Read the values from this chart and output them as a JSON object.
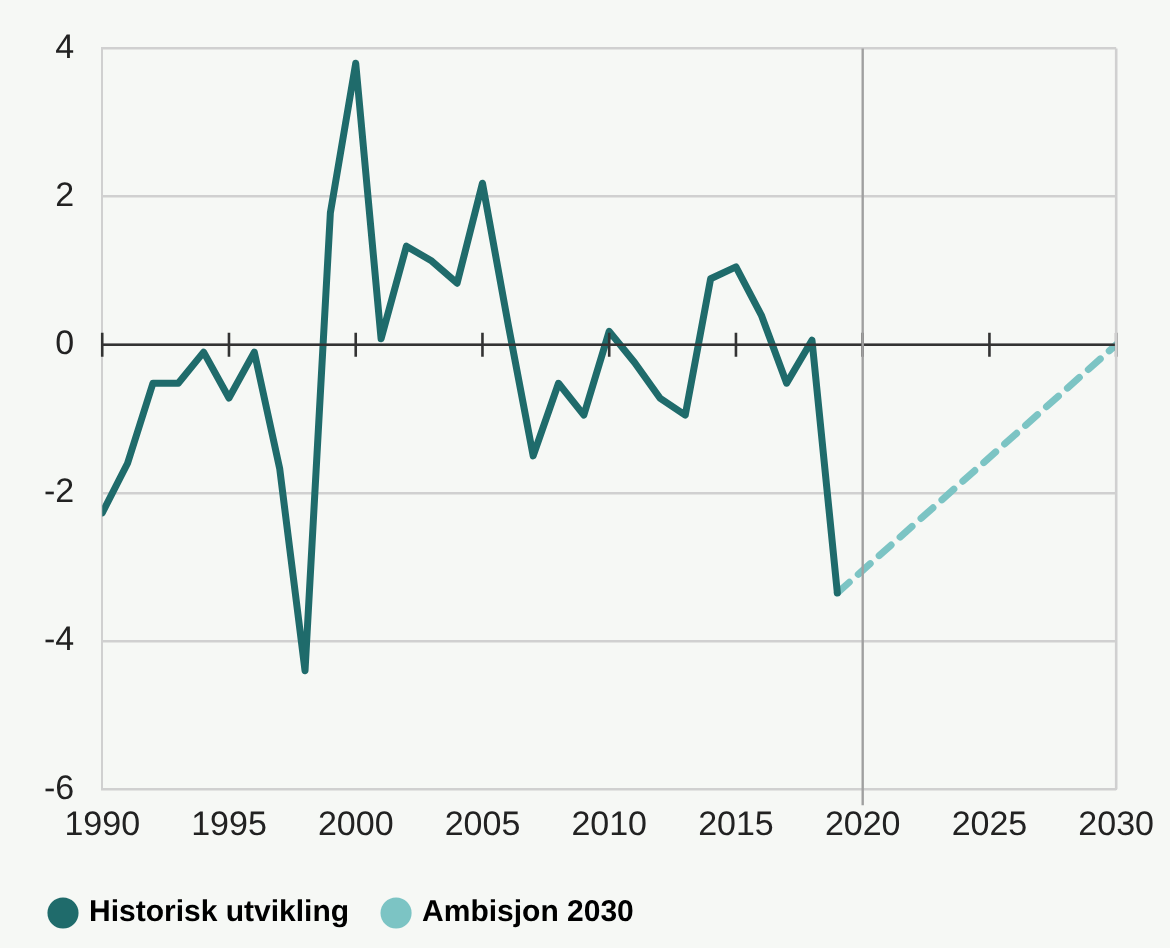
{
  "chart_data": {
    "type": "line",
    "x": [
      1990,
      1991,
      1992,
      1993,
      1994,
      1995,
      1996,
      1997,
      1998,
      1999,
      2000,
      2001,
      2002,
      2003,
      2004,
      2005,
      2006,
      2007,
      2008,
      2009,
      2010,
      2011,
      2012,
      2013,
      2014,
      2015,
      2016,
      2017,
      2018,
      2019
    ],
    "series": [
      {
        "name": "Historisk utvikling",
        "color": "#1f6b6b",
        "line_style": "solid",
        "values": [
          -2.27,
          -1.6,
          -0.52,
          -0.52,
          -0.1,
          -0.72,
          -0.1,
          -1.67,
          -4.4,
          1.78,
          3.8,
          0.08,
          1.33,
          1.13,
          0.83,
          2.18,
          0.3,
          -1.5,
          -0.52,
          -0.95,
          0.18,
          -0.24,
          -0.72,
          -0.95,
          0.89,
          1.05,
          0.4,
          -0.52,
          0.06,
          -3.35
        ]
      },
      {
        "name": "Ambisjon 2030",
        "color": "#7cc4c4",
        "line_style": "dashed",
        "x": [
          2019,
          2030
        ],
        "values": [
          -3.35,
          0
        ]
      }
    ],
    "xlim": [
      1990,
      2030
    ],
    "xticks": [
      1990,
      1995,
      2000,
      2005,
      2010,
      2015,
      2020,
      2025,
      2030
    ],
    "ylim": [
      -6,
      4
    ],
    "yticks": [
      -6,
      -4,
      -2,
      0,
      2,
      4
    ],
    "grid": "y",
    "legend": "bottom",
    "marker": "none",
    "ref_lines": [
      {
        "axis": "x",
        "value": 2020,
        "color": "#a0a0a0"
      }
    ]
  }
}
